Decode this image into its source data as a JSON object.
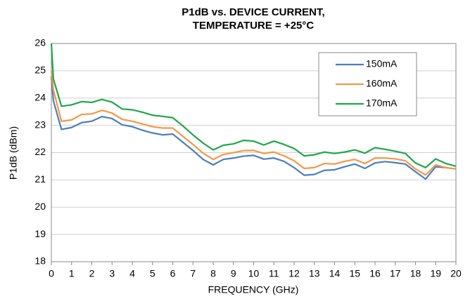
{
  "chart_data": {
    "type": "line",
    "title": [
      "P1dB vs. DEVICE CURRENT,",
      "TEMPERATURE = +25°C"
    ],
    "x_label": "FREQUENCY (GHz)",
    "y_label": "P1dB (dBm)",
    "x": [
      0,
      0.1,
      0.5,
      1,
      1.5,
      2,
      2.5,
      3,
      3.5,
      4,
      4.5,
      5,
      5.5,
      6,
      6.5,
      7,
      7.5,
      8,
      8.5,
      9,
      9.5,
      10,
      10.5,
      11,
      11.5,
      12,
      12.5,
      13,
      13.5,
      14,
      14.5,
      15,
      15.5,
      16,
      16.5,
      17,
      17.5,
      18,
      18.5,
      19,
      19.5,
      20
    ],
    "series": [
      {
        "name": "150mA",
        "color": "#4a7ebb",
        "values": [
          24.8,
          23.9,
          22.85,
          22.92,
          23.1,
          23.15,
          23.32,
          23.25,
          23.02,
          22.95,
          22.82,
          22.72,
          22.65,
          22.68,
          22.38,
          22.08,
          21.75,
          21.55,
          21.75,
          21.8,
          21.87,
          21.9,
          21.76,
          21.8,
          21.68,
          21.45,
          21.17,
          21.2,
          21.35,
          21.37,
          21.48,
          21.58,
          21.42,
          21.62,
          21.67,
          21.63,
          21.58,
          21.3,
          21.03,
          21.48,
          21.45,
          21.4
        ]
      },
      {
        "name": "160mA",
        "color": "#f79646",
        "values": [
          25.0,
          24.3,
          23.15,
          23.2,
          23.4,
          23.42,
          23.55,
          23.45,
          23.22,
          23.15,
          23.05,
          22.95,
          22.9,
          22.9,
          22.6,
          22.3,
          21.98,
          21.75,
          21.93,
          22.0,
          22.07,
          22.08,
          21.97,
          22.02,
          21.88,
          21.7,
          21.42,
          21.45,
          21.6,
          21.58,
          21.68,
          21.75,
          21.6,
          21.8,
          21.8,
          21.77,
          21.7,
          21.4,
          21.18,
          21.55,
          21.45,
          21.4
        ]
      },
      {
        "name": "170mA",
        "color": "#1fa64a",
        "values": [
          26.0,
          24.7,
          23.7,
          23.75,
          23.87,
          23.84,
          23.95,
          23.85,
          23.6,
          23.57,
          23.48,
          23.37,
          23.33,
          23.28,
          22.98,
          22.65,
          22.35,
          22.1,
          22.27,
          22.32,
          22.45,
          22.42,
          22.28,
          22.42,
          22.3,
          22.15,
          21.88,
          21.92,
          22.02,
          21.97,
          22.02,
          22.1,
          21.98,
          22.18,
          22.12,
          22.05,
          21.97,
          21.62,
          21.45,
          21.77,
          21.6,
          21.5
        ]
      }
    ],
    "xlim": [
      0,
      20
    ],
    "xticks": [
      0,
      1,
      2,
      3,
      4,
      5,
      6,
      7,
      8,
      9,
      10,
      11,
      12,
      13,
      14,
      15,
      16,
      17,
      18,
      19,
      20
    ],
    "ylim": [
      18,
      26
    ],
    "yticks": [
      18,
      19,
      20,
      21,
      22,
      23,
      24,
      25,
      26
    ],
    "grid": true,
    "legend": "upper right"
  }
}
